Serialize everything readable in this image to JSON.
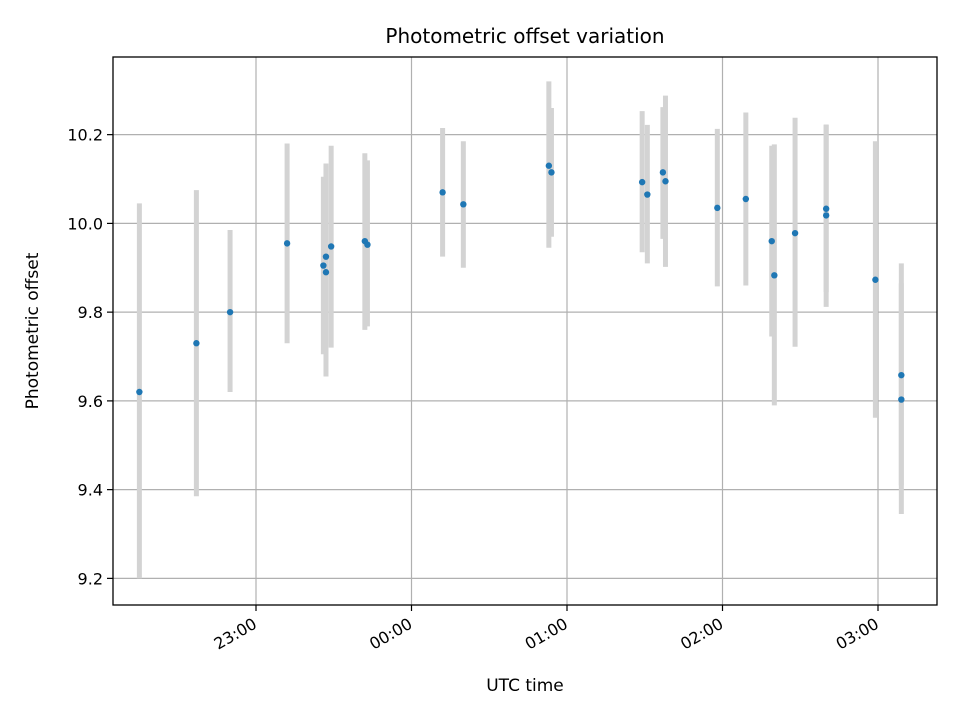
{
  "chart_data": {
    "type": "scatter",
    "title": "Photometric offset variation",
    "xlabel": "UTC time",
    "ylabel": "Photometric offset",
    "x_unit": "UTC time (HH:MM, starting evening before midnight)",
    "xlim": [
      "22:00",
      "03:23"
    ],
    "ylim": [
      9.14,
      10.375
    ],
    "x_ticks": [
      "23:00",
      "00:00",
      "01:00",
      "02:00",
      "03:00"
    ],
    "y_ticks": [
      "9.2",
      "9.4",
      "9.6",
      "9.8",
      "10.0",
      "10.2"
    ],
    "grid": true,
    "colors": {
      "points": "#1f77b4",
      "errorbars": "#d3d3d3",
      "grid": "#b0b0b0"
    },
    "points": [
      {
        "x": "22:15",
        "y": 9.62,
        "yerr_low": 9.2,
        "yerr_high": 10.045
      },
      {
        "x": "22:37",
        "y": 9.73,
        "yerr_low": 9.385,
        "yerr_high": 10.075
      },
      {
        "x": "22:50",
        "y": 9.8,
        "yerr_low": 9.62,
        "yerr_high": 9.985
      },
      {
        "x": "23:12",
        "y": 9.955,
        "yerr_low": 9.73,
        "yerr_high": 10.18
      },
      {
        "x": "23:26",
        "y": 9.905,
        "yerr_low": 9.705,
        "yerr_high": 10.105
      },
      {
        "x": "23:27",
        "y": 9.89,
        "yerr_low": 9.655,
        "yerr_high": 10.135
      },
      {
        "x": "23:27",
        "y": 9.925,
        "yerr_low": 9.725,
        "yerr_high": 10.13
      },
      {
        "x": "23:29",
        "y": 9.948,
        "yerr_low": 9.72,
        "yerr_high": 10.175
      },
      {
        "x": "23:42",
        "y": 9.96,
        "yerr_low": 9.76,
        "yerr_high": 10.158
      },
      {
        "x": "23:43",
        "y": 9.952,
        "yerr_low": 9.768,
        "yerr_high": 10.142
      },
      {
        "x": "00:12",
        "y": 10.07,
        "yerr_low": 9.925,
        "yerr_high": 10.215
      },
      {
        "x": "00:20",
        "y": 10.043,
        "yerr_low": 9.9,
        "yerr_high": 10.185
      },
      {
        "x": "00:53",
        "y": 10.13,
        "yerr_low": 9.945,
        "yerr_high": 10.32
      },
      {
        "x": "00:54",
        "y": 10.115,
        "yerr_low": 9.97,
        "yerr_high": 10.26
      },
      {
        "x": "01:29",
        "y": 10.093,
        "yerr_low": 9.935,
        "yerr_high": 10.253
      },
      {
        "x": "01:31",
        "y": 10.065,
        "yerr_low": 9.91,
        "yerr_high": 10.222
      },
      {
        "x": "01:37",
        "y": 10.115,
        "yerr_low": 9.965,
        "yerr_high": 10.262
      },
      {
        "x": "01:38",
        "y": 10.095,
        "yerr_low": 9.902,
        "yerr_high": 10.288
      },
      {
        "x": "01:58",
        "y": 10.035,
        "yerr_low": 9.858,
        "yerr_high": 10.213
      },
      {
        "x": "02:09",
        "y": 10.055,
        "yerr_low": 9.86,
        "yerr_high": 10.25
      },
      {
        "x": "02:19",
        "y": 9.96,
        "yerr_low": 9.745,
        "yerr_high": 10.175
      },
      {
        "x": "02:20",
        "y": 9.883,
        "yerr_low": 9.59,
        "yerr_high": 10.178
      },
      {
        "x": "02:28",
        "y": 9.978,
        "yerr_low": 9.722,
        "yerr_high": 10.238
      },
      {
        "x": "02:40",
        "y": 10.018,
        "yerr_low": 9.812,
        "yerr_high": 10.223
      },
      {
        "x": "02:40",
        "y": 10.033,
        "yerr_low": 9.845,
        "yerr_high": 10.222
      },
      {
        "x": "02:59",
        "y": 9.873,
        "yerr_low": 9.562,
        "yerr_high": 10.185
      },
      {
        "x": "03:09",
        "y": 9.658,
        "yerr_low": 9.41,
        "yerr_high": 9.91
      },
      {
        "x": "03:09",
        "y": 9.603,
        "yerr_low": 9.345,
        "yerr_high": 9.865
      }
    ]
  }
}
